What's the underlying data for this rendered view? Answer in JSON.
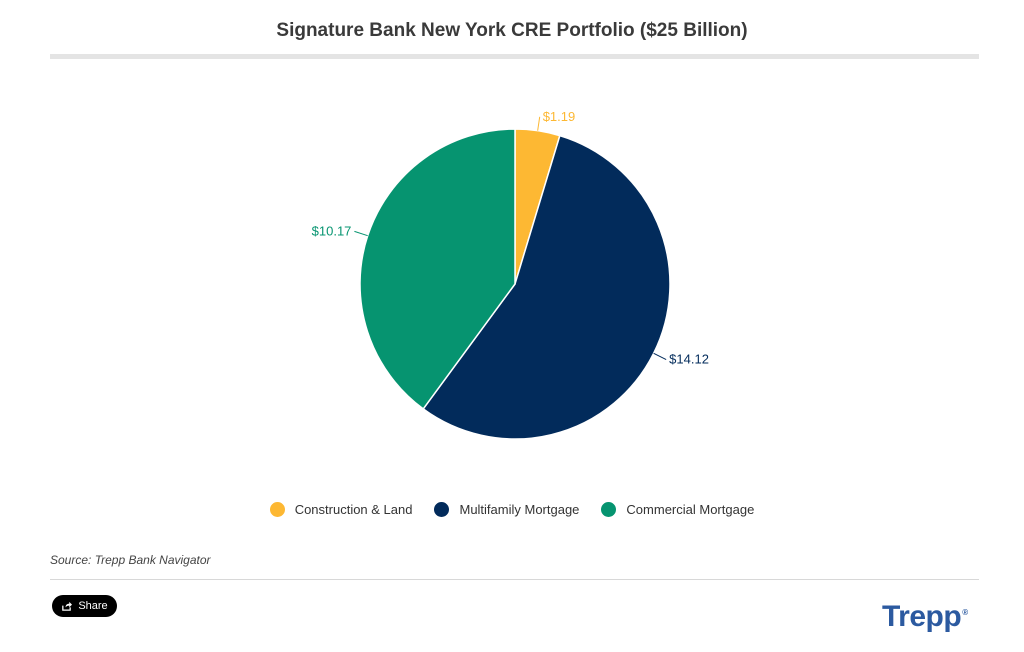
{
  "chart_data": {
    "type": "pie",
    "title": "Signature Bank New York CRE Portfolio ($25 Billion)",
    "slices": [
      {
        "name": "Construction & Land",
        "value": 1.19,
        "label": "$1.19",
        "color": "#FDB833"
      },
      {
        "name": "Multifamily Mortgage",
        "value": 14.12,
        "label": "$14.12",
        "color": "#022B5B"
      },
      {
        "name": "Commercial Mortgage",
        "value": 10.17,
        "label": "$10.17",
        "color": "#069470"
      }
    ],
    "legend_position": "bottom",
    "start_angle_deg": 0,
    "direction": "clockwise"
  },
  "source": "Source: Trepp Bank Navigator",
  "share_label": "Share",
  "logo_text": "Trepp",
  "logo_mark": "®"
}
